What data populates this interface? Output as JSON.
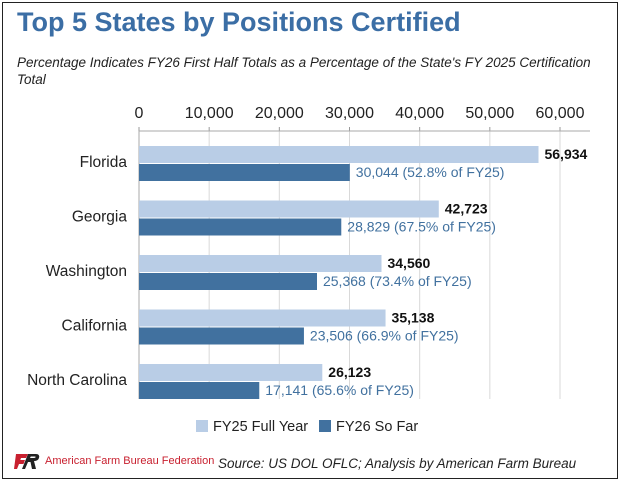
{
  "title": "Top 5 States by Positions Certified",
  "subtitle": "Percentage Indicates FY26 First Half Totals as a Percentage of the State's FY 2025 Certification Total",
  "source": "Source: US DOL OFLC; Analysis by American Farm Bureau",
  "logo_text": "American Farm Bureau Federation",
  "colors": {
    "fy25": "#b9cde6",
    "fy26": "#41719f",
    "title": "#3b6ea5",
    "fy26_label": "#41719f"
  },
  "chart_data": {
    "type": "bar",
    "orientation": "horizontal",
    "x_axis_position": "top",
    "xlim": [
      0,
      60000
    ],
    "x_ticks": [
      "0",
      "10,000",
      "20,000",
      "30,000",
      "40,000",
      "50,000",
      "60,000"
    ],
    "x_tick_values": [
      0,
      10000,
      20000,
      30000,
      40000,
      50000,
      60000
    ],
    "grid": true,
    "legend_position": "bottom",
    "categories": [
      "Florida",
      "Georgia",
      "Washington",
      "California",
      "North Carolina"
    ],
    "series": [
      {
        "name": "FY25 Full Year",
        "values": [
          56934,
          42723,
          34560,
          35138,
          26123
        ],
        "labels": [
          "56,934",
          "42,723",
          "34,560",
          "35,138",
          "26,123"
        ]
      },
      {
        "name": "FY26 So Far",
        "values": [
          30044,
          28829,
          25368,
          23506,
          17141
        ],
        "labels": [
          "30,044 (52.8% of FY25)",
          "28,829 (67.5% of FY25)",
          "25,368 (73.4% of FY25)",
          "23,506 (66.9% of FY25)",
          "17,141 (65.6% of FY25)"
        ]
      }
    ]
  }
}
